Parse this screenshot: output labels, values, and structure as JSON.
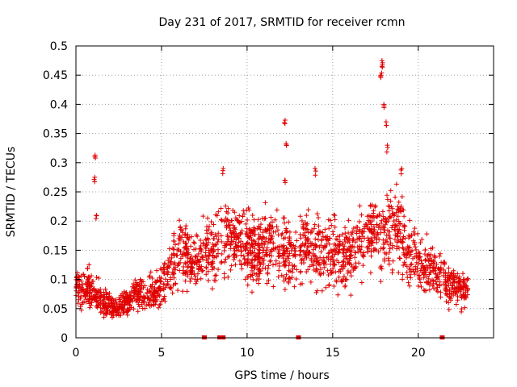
{
  "chart_data": {
    "type": "scatter",
    "title": "Day 231 of 2017, SRMTID for receiver rcmn",
    "xlabel": "GPS time / hours",
    "ylabel": "SRMTID / TECUs",
    "xlim": [
      0,
      24.4
    ],
    "ylim": [
      0,
      0.5
    ],
    "xticks": [
      "0",
      "5",
      "10",
      "15",
      "20"
    ],
    "xtick_values": [
      0,
      5,
      10,
      15,
      20
    ],
    "yticks": [
      "0",
      "0.05",
      "0.1",
      "0.15",
      "0.2",
      "0.25",
      "0.3",
      "0.35",
      "0.4",
      "0.45",
      "0.5"
    ],
    "ytick_values": [
      0,
      0.05,
      0.1,
      0.15,
      0.2,
      0.25,
      0.3,
      0.35,
      0.4,
      0.45,
      0.5
    ],
    "grid": true,
    "marker": "+",
    "color": "#e00000",
    "baseline_markers_x": [
      7.5,
      8.4,
      8.6,
      13.0,
      21.4
    ],
    "trend": [
      {
        "x": 0.0,
        "y": 0.085
      },
      {
        "x": 0.5,
        "y": 0.09
      },
      {
        "x": 1.0,
        "y": 0.075
      },
      {
        "x": 1.5,
        "y": 0.065
      },
      {
        "x": 2.0,
        "y": 0.055
      },
      {
        "x": 2.5,
        "y": 0.05
      },
      {
        "x": 3.0,
        "y": 0.06
      },
      {
        "x": 3.5,
        "y": 0.08
      },
      {
        "x": 4.0,
        "y": 0.075
      },
      {
        "x": 4.5,
        "y": 0.075
      },
      {
        "x": 5.0,
        "y": 0.09
      },
      {
        "x": 5.5,
        "y": 0.12
      },
      {
        "x": 6.0,
        "y": 0.15
      },
      {
        "x": 6.5,
        "y": 0.14
      },
      {
        "x": 7.0,
        "y": 0.13
      },
      {
        "x": 7.5,
        "y": 0.15
      },
      {
        "x": 8.0,
        "y": 0.14
      },
      {
        "x": 8.5,
        "y": 0.18
      },
      {
        "x": 9.0,
        "y": 0.17
      },
      {
        "x": 9.5,
        "y": 0.17
      },
      {
        "x": 10.0,
        "y": 0.16
      },
      {
        "x": 10.5,
        "y": 0.15
      },
      {
        "x": 11.0,
        "y": 0.15
      },
      {
        "x": 11.5,
        "y": 0.16
      },
      {
        "x": 12.0,
        "y": 0.15
      },
      {
        "x": 12.5,
        "y": 0.14
      },
      {
        "x": 13.0,
        "y": 0.14
      },
      {
        "x": 13.5,
        "y": 0.16
      },
      {
        "x": 14.0,
        "y": 0.15
      },
      {
        "x": 14.5,
        "y": 0.14
      },
      {
        "x": 15.0,
        "y": 0.15
      },
      {
        "x": 15.5,
        "y": 0.14
      },
      {
        "x": 16.0,
        "y": 0.15
      },
      {
        "x": 16.5,
        "y": 0.16
      },
      {
        "x": 17.0,
        "y": 0.17
      },
      {
        "x": 17.5,
        "y": 0.18
      },
      {
        "x": 18.0,
        "y": 0.18
      },
      {
        "x": 18.5,
        "y": 0.19
      },
      {
        "x": 19.0,
        "y": 0.17
      },
      {
        "x": 19.5,
        "y": 0.15
      },
      {
        "x": 20.0,
        "y": 0.13
      },
      {
        "x": 20.5,
        "y": 0.12
      },
      {
        "x": 21.0,
        "y": 0.11
      },
      {
        "x": 21.5,
        "y": 0.1
      },
      {
        "x": 22.0,
        "y": 0.09
      },
      {
        "x": 22.5,
        "y": 0.085
      },
      {
        "x": 22.9,
        "y": 0.085
      }
    ],
    "spikes": [
      {
        "x": 1.1,
        "y": 0.313
      },
      {
        "x": 1.1,
        "y": 0.275
      },
      {
        "x": 1.2,
        "y": 0.21
      },
      {
        "x": 12.2,
        "y": 0.373
      },
      {
        "x": 12.3,
        "y": 0.333
      },
      {
        "x": 12.2,
        "y": 0.27
      },
      {
        "x": 17.9,
        "y": 0.475
      },
      {
        "x": 17.9,
        "y": 0.465
      },
      {
        "x": 17.8,
        "y": 0.45
      },
      {
        "x": 18.0,
        "y": 0.4
      },
      {
        "x": 18.1,
        "y": 0.37
      },
      {
        "x": 18.2,
        "y": 0.33
      },
      {
        "x": 8.6,
        "y": 0.29
      },
      {
        "x": 14.0,
        "y": 0.29
      },
      {
        "x": 19.0,
        "y": 0.29
      }
    ]
  }
}
